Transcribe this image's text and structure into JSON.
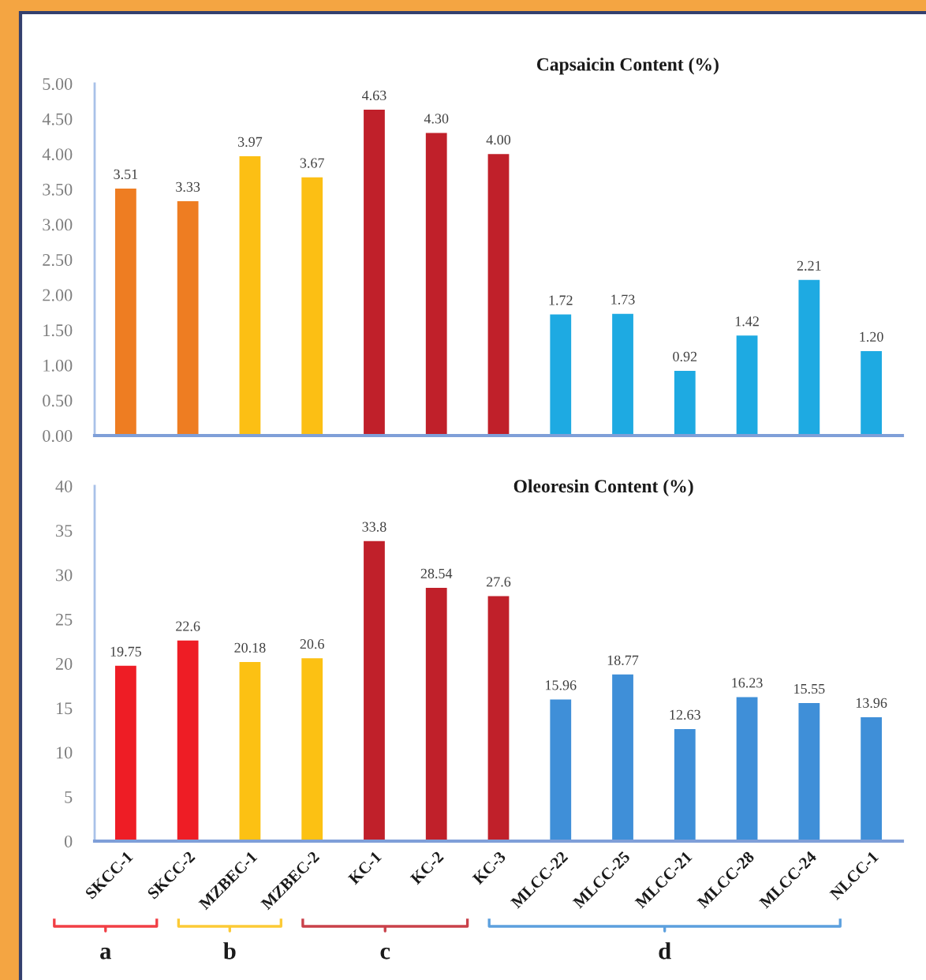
{
  "chart_data": [
    {
      "type": "bar",
      "title": "Capsaicin Content (%)",
      "categories": [
        null,
        null,
        null,
        null,
        null,
        null,
        null,
        null,
        null,
        null,
        null,
        null,
        null
      ],
      "values": [
        3.51,
        3.33,
        3.97,
        3.67,
        4.63,
        4.3,
        4.0,
        1.72,
        1.73,
        0.92,
        1.42,
        2.21,
        1.2
      ],
      "colors": [
        "#ee7d22",
        "#ee7d22",
        "#fcbf14",
        "#fcbf14",
        "#c0202a",
        "#c0202a",
        "#c0202a",
        "#1eaae2",
        "#1eaae2",
        "#1eaae2",
        "#1eaae2",
        "#1eaae2",
        "#1eaae2"
      ],
      "value_labels": [
        "3.51",
        "3.33",
        "3.97",
        "3.67",
        "4.63",
        "4.30",
        "4.00",
        "1.72",
        "1.73",
        "0.92",
        "1.42",
        "2.21",
        "1.20"
      ],
      "ylim": [
        0,
        5
      ],
      "yticks": [
        {
          "value": 0,
          "label": "0.00"
        },
        {
          "value": 0.5,
          "label": "0.50"
        },
        {
          "value": 1,
          "label": "1.00"
        },
        {
          "value": 1.5,
          "label": "1.50"
        },
        {
          "value": 2,
          "label": "2.00"
        },
        {
          "value": 2.5,
          "label": "2.50"
        },
        {
          "value": 3,
          "label": "3.00"
        },
        {
          "value": 3.5,
          "label": "3.50"
        },
        {
          "value": 4,
          "label": "4.00"
        },
        {
          "value": 4.5,
          "label": "4.50"
        },
        {
          "value": 5,
          "label": "5.00"
        }
      ]
    },
    {
      "type": "bar",
      "title": "Oleoresin Content (%)",
      "categories": [
        "SKCC-1",
        "SKCC-2",
        "MZBEC-1",
        "MZBEC-2",
        "KC-1",
        "KC-2",
        "KC-3",
        "MLCC-22",
        "MLCC-25",
        "MLCC-21",
        "MLCC-28",
        "MLCC-24",
        "NLCC-1"
      ],
      "values": [
        19.75,
        22.6,
        20.18,
        20.6,
        33.8,
        28.54,
        27.6,
        15.96,
        18.77,
        12.63,
        16.23,
        15.55,
        13.96
      ],
      "colors": [
        "#ee1d25",
        "#ee1d25",
        "#fcc113",
        "#fcc113",
        "#c0202a",
        "#c0202a",
        "#c0202a",
        "#3f8fd8",
        "#3f8fd8",
        "#3f8fd8",
        "#3f8fd8",
        "#3f8fd8",
        "#3f8fd8"
      ],
      "data_labels": true,
      "ylim": [
        0,
        40
      ],
      "yticks": [
        0,
        5,
        10,
        15,
        20,
        25,
        30,
        35,
        40
      ],
      "annotations": [
        "a",
        "b",
        "c",
        "d"
      ]
    }
  ]
}
